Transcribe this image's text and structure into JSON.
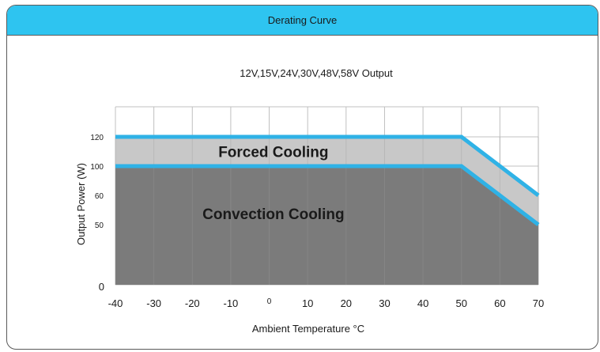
{
  "header": {
    "title": "Derating Curve"
  },
  "chart_data": {
    "type": "area",
    "title": "12V,15V,24V,30V,48V,58V Output",
    "xlabel": "Ambient Temperature °C",
    "ylabel": "Output Power (W)",
    "x_ticks": [
      -40,
      -30,
      -20,
      -10,
      0,
      10,
      20,
      30,
      40,
      50,
      60,
      70
    ],
    "x_tick_labels": [
      "-40",
      "-30",
      "-20",
      "-10",
      "0",
      "10",
      "20",
      "30",
      "40",
      "50",
      "60",
      "70"
    ],
    "y_ticks": [
      0,
      50,
      60,
      100,
      120
    ],
    "y_tick_labels": [
      "0",
      "50",
      "60",
      "100",
      "120"
    ],
    "xlim": [
      -40,
      70
    ],
    "grid": true,
    "series": [
      {
        "name": "",
        "x": [
          -40,
          50,
          70
        ],
        "y": [
          120,
          120,
          60
        ]
      },
      {
        "name": "",
        "x": [
          -40,
          50,
          70
        ],
        "y": [
          100,
          100,
          50
        ]
      }
    ],
    "annotations": [
      {
        "text": "Forced Cooling",
        "x": 5,
        "y": 110
      },
      {
        "text": "Convection Cooling",
        "x": 5,
        "y": 80
      }
    ],
    "colors": {
      "line": "#2fb2e6",
      "forced_fill": "#c8c8c8",
      "convection_fill": "#7b7b7b",
      "grid": "#c0c0c0"
    }
  }
}
